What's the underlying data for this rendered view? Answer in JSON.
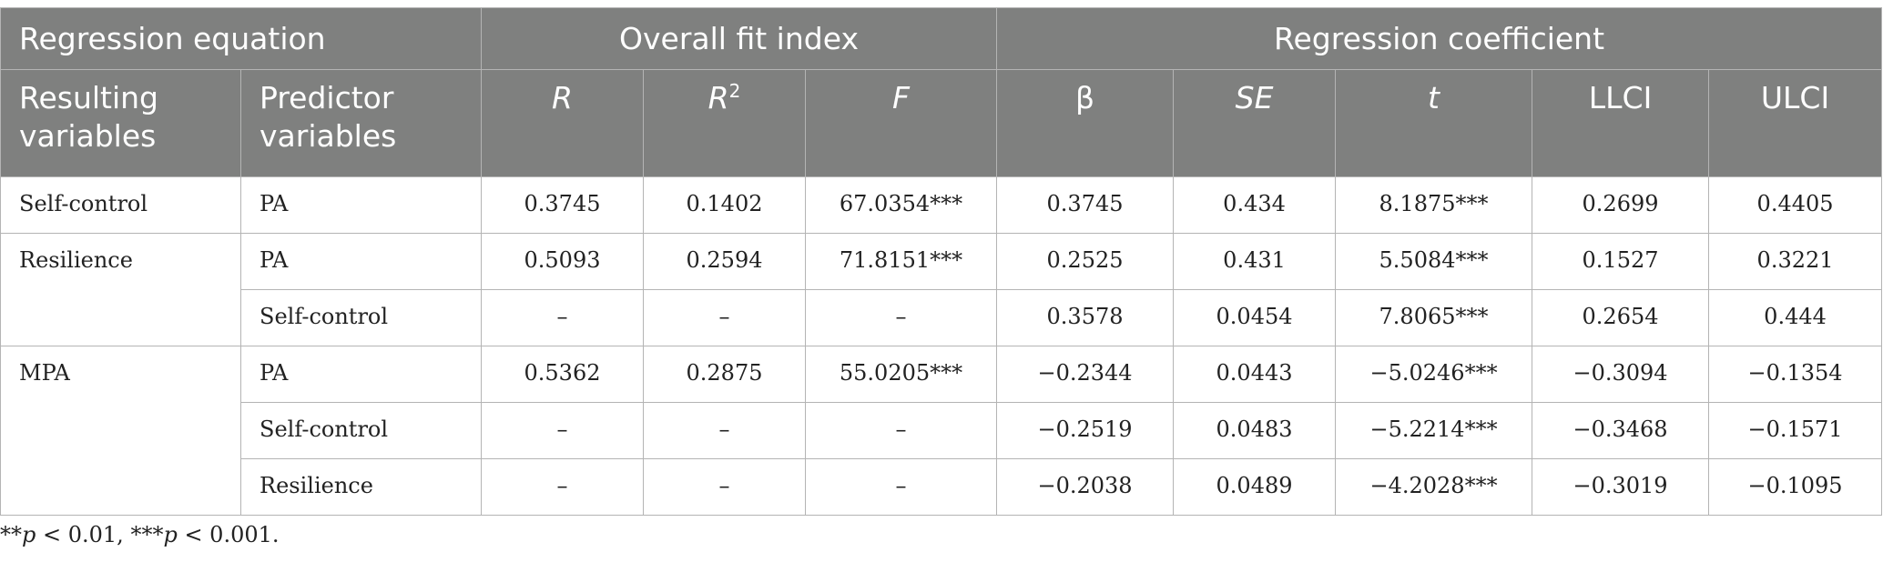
{
  "header": {
    "group_regression_equation": "Regression equation",
    "group_overall_fit": "Overall fit index",
    "group_regression_coefficient": "Regression coefficient",
    "col_resulting": "Resulting variables",
    "col_predictor": "Predictor variables",
    "col_r": "R",
    "col_r2_base": "R",
    "col_r2_sup": "2",
    "col_f": "F",
    "col_beta": "β",
    "col_se": "SE",
    "col_t": "t",
    "col_llci": "LLCI",
    "col_ulci": "ULCI"
  },
  "rows": [
    {
      "result": "Self-control",
      "predictor": "PA",
      "r": "0.3745",
      "r2": "0.1402",
      "f": "67.0354***",
      "beta": "0.3745",
      "se": "0.434",
      "t": "8.1875***",
      "llci": "0.2699",
      "ulci": "0.4405"
    },
    {
      "result": "Resilience",
      "predictor": "PA",
      "r": "0.5093",
      "r2": "0.2594",
      "f": "71.8151***",
      "beta": "0.2525",
      "se": "0.431",
      "t": "5.5084***",
      "llci": "0.1527",
      "ulci": "0.3221"
    },
    {
      "result": "",
      "predictor": "Self-control",
      "r": "–",
      "r2": "–",
      "f": "–",
      "beta": "0.3578",
      "se": "0.0454",
      "t": "7.8065***",
      "llci": "0.2654",
      "ulci": "0.444"
    },
    {
      "result": "MPA",
      "predictor": "PA",
      "r": "0.5362",
      "r2": "0.2875",
      "f": "55.0205***",
      "beta": "−0.2344",
      "se": "0.0443",
      "t": "−5.0246***",
      "llci": "−0.3094",
      "ulci": "−0.1354"
    },
    {
      "result": "",
      "predictor": "Self-control",
      "r": "–",
      "r2": "–",
      "f": "–",
      "beta": "−0.2519",
      "se": "0.0483",
      "t": "−5.2214***",
      "llci": "−0.3468",
      "ulci": "−0.1571"
    },
    {
      "result": "",
      "predictor": "Resilience",
      "r": "–",
      "r2": "–",
      "f": "–",
      "beta": "−0.2038",
      "se": "0.0489",
      "t": "−4.2028***",
      "llci": "−0.3019",
      "ulci": "−0.1095"
    }
  ],
  "footnote": {
    "stars2": "**",
    "p1": "p",
    "text1": " < 0.01, ***",
    "p2": "p",
    "text2": " < 0.001."
  }
}
